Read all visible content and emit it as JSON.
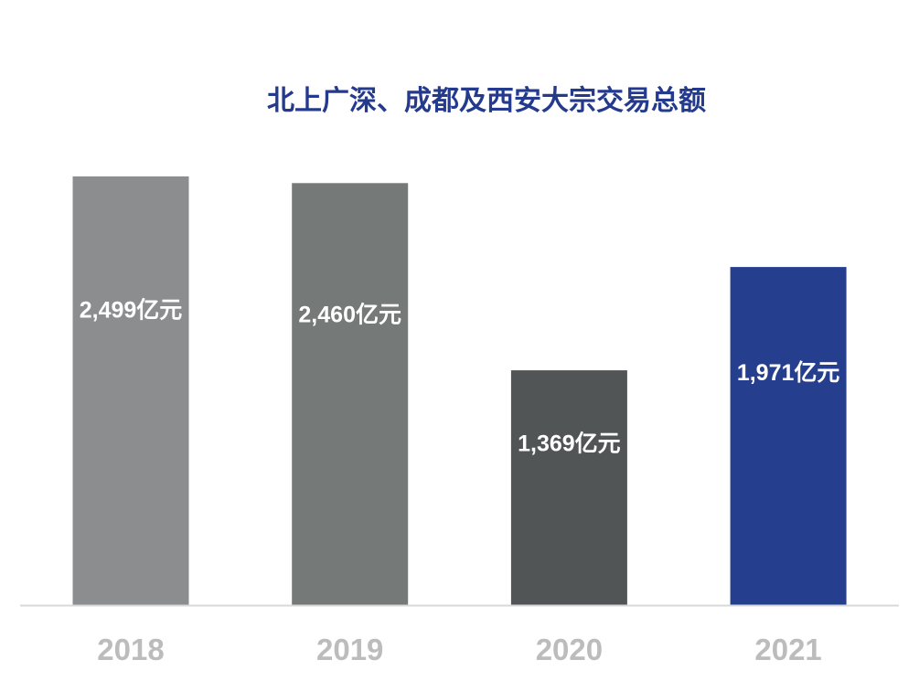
{
  "chart_data": {
    "type": "bar",
    "title": "北上广深、成都及西安大宗交易总额",
    "categories": [
      "2018",
      "2019",
      "2020",
      "2021"
    ],
    "values": [
      2499,
      2460,
      1369,
      1971
    ],
    "data_labels": [
      "2,499亿元",
      "2,460亿元",
      "1,369亿元",
      "1,971亿元"
    ],
    "unit": "亿元",
    "colors": [
      "#8b8d8e",
      "#757978",
      "#525556",
      "#253f8e"
    ],
    "axis_color": "#d9d9d9",
    "title_color": "#243a8c",
    "tick_color": "#bcbcbc",
    "label_color": "#ffffff",
    "ylim": [
      0,
      2499
    ],
    "grid": false,
    "legend": "none"
  }
}
